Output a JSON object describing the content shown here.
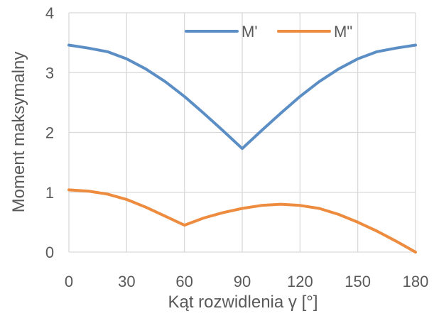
{
  "chart_data": {
    "type": "line",
    "xlabel": "Kąt rozwidlenia γ [°]",
    "ylabel": "Moment maksymalny",
    "xlim": [
      0,
      180
    ],
    "ylim": [
      0,
      4
    ],
    "x_ticks": [
      "0",
      "30",
      "60",
      "90",
      "120",
      "150",
      "180"
    ],
    "y_ticks": [
      "0",
      "1",
      "2",
      "3",
      "4"
    ],
    "grid": true,
    "legend_position": "top-right",
    "series": [
      {
        "name": "M'",
        "color": "#5b8ec4",
        "x": [
          0,
          10,
          20,
          30,
          40,
          50,
          60,
          70,
          80,
          90,
          100,
          110,
          120,
          130,
          140,
          150,
          160,
          170,
          180
        ],
        "y": [
          3.46,
          3.41,
          3.35,
          3.23,
          3.06,
          2.85,
          2.6,
          2.32,
          2.03,
          1.73,
          2.03,
          2.32,
          2.6,
          2.85,
          3.06,
          3.23,
          3.35,
          3.41,
          3.46
        ]
      },
      {
        "name": "M\"",
        "color": "#ed8b3e",
        "x": [
          0,
          10,
          20,
          30,
          40,
          50,
          60,
          70,
          80,
          90,
          100,
          110,
          120,
          130,
          140,
          150,
          160,
          170,
          180
        ],
        "y": [
          1.04,
          1.02,
          0.97,
          0.88,
          0.75,
          0.6,
          0.45,
          0.57,
          0.66,
          0.73,
          0.78,
          0.8,
          0.78,
          0.73,
          0.63,
          0.5,
          0.35,
          0.18,
          0.0
        ]
      }
    ]
  }
}
